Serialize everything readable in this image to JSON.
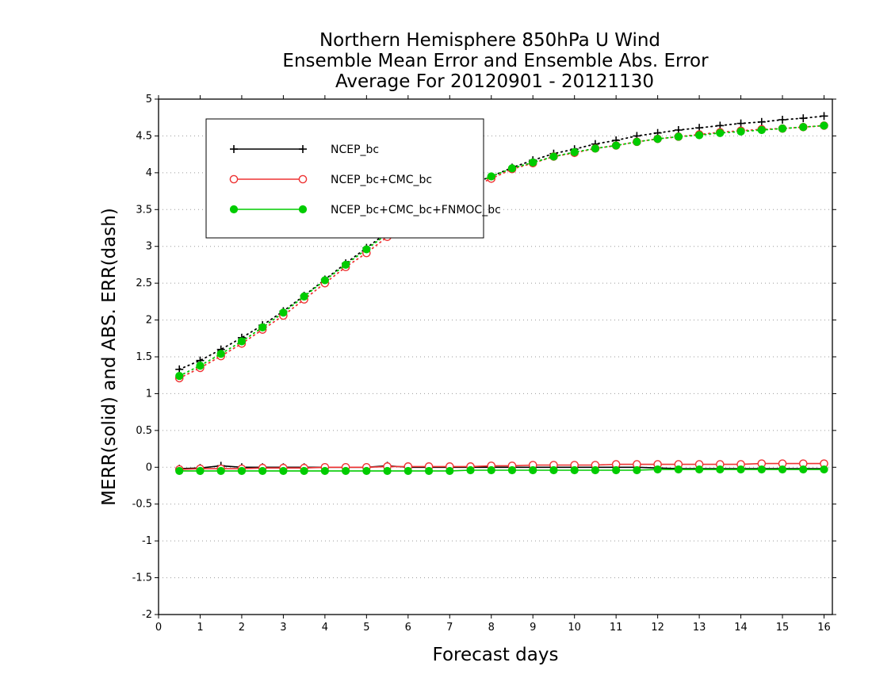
{
  "chart_data": {
    "type": "line",
    "title": [
      "Northern Hemisphere 850hPa U Wind",
      "Ensemble Mean Error and Ensemble Abs. Error",
      "Average For 20120901 - 20121130"
    ],
    "xlabel": "Forecast days",
    "ylabel": "MERR(solid) and ABS. ERR(dash)",
    "xlim": [
      0,
      16.2
    ],
    "ylim": [
      -2,
      5
    ],
    "xticks": [
      0,
      1,
      2,
      3,
      4,
      5,
      6,
      7,
      8,
      9,
      10,
      11,
      12,
      13,
      14,
      15,
      16
    ],
    "yticks": [
      -2,
      -1.5,
      -1,
      -0.5,
      0,
      0.5,
      1,
      1.5,
      2,
      2.5,
      3,
      3.5,
      4,
      4.5,
      5
    ],
    "ytick_labels": [
      "-2",
      "-1.5",
      "-1",
      "-0.5",
      "0",
      "0.5",
      "1",
      "1.5",
      "2",
      "2.5",
      "3",
      "3.5",
      "4",
      "4.5",
      "5"
    ],
    "grid": "horizontal-dotted",
    "legend_position": "top-left",
    "x": [
      0.5,
      1,
      1.5,
      2,
      2.5,
      3,
      3.5,
      4,
      4.5,
      5,
      5.5,
      6,
      6.5,
      7,
      7.5,
      8,
      8.5,
      9,
      9.5,
      10,
      10.5,
      11,
      11.5,
      12,
      12.5,
      13,
      13.5,
      14,
      14.5,
      15,
      15.5,
      16
    ],
    "series": [
      {
        "name": "NCEP_bc",
        "color": "#000000",
        "marker": "plus",
        "abs_err": [
          1.33,
          1.45,
          1.6,
          1.76,
          1.93,
          2.12,
          2.33,
          2.55,
          2.77,
          2.98,
          3.19,
          3.38,
          3.54,
          3.68,
          3.84,
          3.95,
          4.07,
          4.17,
          4.26,
          4.32,
          4.39,
          4.44,
          4.5,
          4.54,
          4.58,
          4.61,
          4.64,
          4.67,
          4.69,
          4.72,
          4.74,
          4.77
        ],
        "mean_err": [
          -0.02,
          -0.01,
          0.02,
          0.0,
          0.0,
          0.0,
          0.0,
          0.0,
          0.0,
          0.0,
          0.02,
          0.0,
          0.0,
          0.0,
          0.0,
          0.0,
          0.0,
          0.0,
          0.0,
          0.0,
          0.0,
          0.0,
          0.0,
          -0.01,
          -0.02,
          -0.02,
          -0.02,
          -0.02,
          -0.02,
          -0.02,
          -0.02,
          -0.02
        ]
      },
      {
        "name": "NCEP_bc+CMC_bc",
        "color": "#ee3333",
        "marker": "open-circle",
        "abs_err": [
          1.21,
          1.35,
          1.51,
          1.68,
          1.87,
          2.06,
          2.28,
          2.5,
          2.72,
          2.91,
          3.13,
          3.34,
          3.5,
          3.64,
          3.8,
          3.92,
          4.05,
          4.13,
          4.22,
          4.27,
          4.33,
          4.37,
          4.42,
          4.46,
          4.49,
          4.52,
          4.55,
          4.57,
          4.59,
          4.6,
          4.62,
          4.64
        ],
        "mean_err": [
          -0.03,
          -0.02,
          -0.02,
          -0.02,
          -0.01,
          -0.01,
          -0.01,
          0.0,
          0.0,
          0.0,
          0.01,
          0.01,
          0.01,
          0.01,
          0.01,
          0.02,
          0.02,
          0.03,
          0.03,
          0.03,
          0.03,
          0.04,
          0.04,
          0.04,
          0.04,
          0.04,
          0.04,
          0.04,
          0.05,
          0.05,
          0.05,
          0.05
        ]
      },
      {
        "name": "NCEP_bc+CMC_bc+FNMOC_bc",
        "color": "#00cc00",
        "marker": "filled-circle",
        "abs_err": [
          1.24,
          1.38,
          1.54,
          1.71,
          1.9,
          2.1,
          2.32,
          2.54,
          2.75,
          2.96,
          3.17,
          3.37,
          3.53,
          3.67,
          3.83,
          3.95,
          4.06,
          4.14,
          4.22,
          4.28,
          4.33,
          4.37,
          4.42,
          4.46,
          4.49,
          4.51,
          4.54,
          4.56,
          4.58,
          4.6,
          4.62,
          4.64
        ],
        "mean_err": [
          -0.05,
          -0.05,
          -0.05,
          -0.05,
          -0.05,
          -0.05,
          -0.05,
          -0.05,
          -0.05,
          -0.05,
          -0.05,
          -0.05,
          -0.05,
          -0.05,
          -0.04,
          -0.04,
          -0.04,
          -0.04,
          -0.04,
          -0.04,
          -0.04,
          -0.04,
          -0.04,
          -0.03,
          -0.03,
          -0.03,
          -0.03,
          -0.03,
          -0.03,
          -0.03,
          -0.03,
          -0.03
        ]
      }
    ]
  }
}
